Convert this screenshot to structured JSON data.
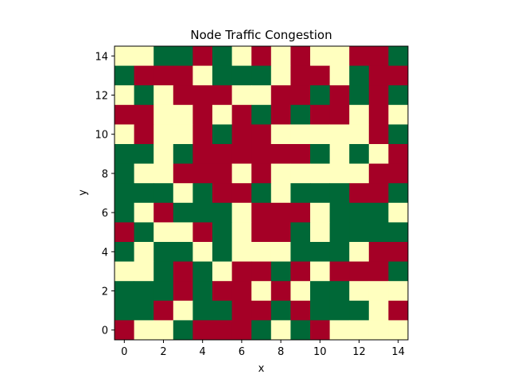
{
  "chart_data": {
    "type": "heatmap",
    "title": "Node Traffic Congestion",
    "xlabel": "x",
    "ylabel": "y",
    "xlim": [
      -0.5,
      14.5
    ],
    "ylim": [
      -0.5,
      14.5
    ],
    "xticks": [
      0,
      2,
      4,
      6,
      8,
      10,
      12,
      14
    ],
    "yticks": [
      0,
      2,
      4,
      6,
      8,
      10,
      12,
      14
    ],
    "grid": false,
    "colors": {
      "0": "#006837",
      "1": "#ffffbf",
      "2": "#a50026"
    },
    "rows_y": [
      14,
      13,
      12,
      11,
      10,
      9,
      8,
      7,
      6,
      5,
      4,
      3,
      2,
      1,
      0
    ],
    "grid_values": [
      [
        1,
        1,
        0,
        0,
        2,
        0,
        1,
        2,
        1,
        2,
        1,
        1,
        2,
        2,
        0
      ],
      [
        0,
        2,
        2,
        2,
        1,
        0,
        0,
        0,
        1,
        2,
        2,
        1,
        0,
        2,
        2
      ],
      [
        1,
        0,
        1,
        2,
        2,
        2,
        1,
        1,
        2,
        2,
        0,
        2,
        0,
        2,
        0
      ],
      [
        2,
        2,
        1,
        1,
        2,
        1,
        2,
        0,
        2,
        0,
        2,
        2,
        1,
        2,
        1
      ],
      [
        1,
        2,
        1,
        1,
        2,
        0,
        2,
        2,
        1,
        1,
        1,
        1,
        1,
        2,
        0
      ],
      [
        0,
        0,
        1,
        0,
        2,
        2,
        2,
        2,
        2,
        2,
        0,
        1,
        0,
        1,
        2
      ],
      [
        0,
        1,
        1,
        2,
        2,
        2,
        1,
        2,
        1,
        1,
        1,
        1,
        1,
        2,
        2
      ],
      [
        0,
        0,
        0,
        1,
        0,
        2,
        2,
        0,
        1,
        0,
        0,
        0,
        2,
        2,
        0
      ],
      [
        0,
        1,
        2,
        0,
        0,
        0,
        1,
        2,
        2,
        2,
        1,
        0,
        0,
        0,
        1
      ],
      [
        2,
        0,
        1,
        1,
        2,
        0,
        1,
        2,
        2,
        0,
        1,
        0,
        0,
        0,
        0
      ],
      [
        0,
        1,
        0,
        0,
        1,
        0,
        1,
        1,
        1,
        0,
        0,
        0,
        1,
        2,
        2
      ],
      [
        1,
        1,
        0,
        2,
        0,
        1,
        2,
        2,
        0,
        2,
        1,
        2,
        2,
        2,
        0
      ],
      [
        0,
        0,
        0,
        2,
        0,
        2,
        2,
        1,
        2,
        1,
        0,
        0,
        1,
        1,
        1
      ],
      [
        0,
        0,
        2,
        1,
        0,
        0,
        2,
        2,
        0,
        2,
        0,
        0,
        0,
        1,
        2
      ],
      [
        2,
        1,
        1,
        0,
        2,
        2,
        2,
        0,
        1,
        0,
        2,
        1,
        1,
        1,
        1
      ]
    ]
  }
}
